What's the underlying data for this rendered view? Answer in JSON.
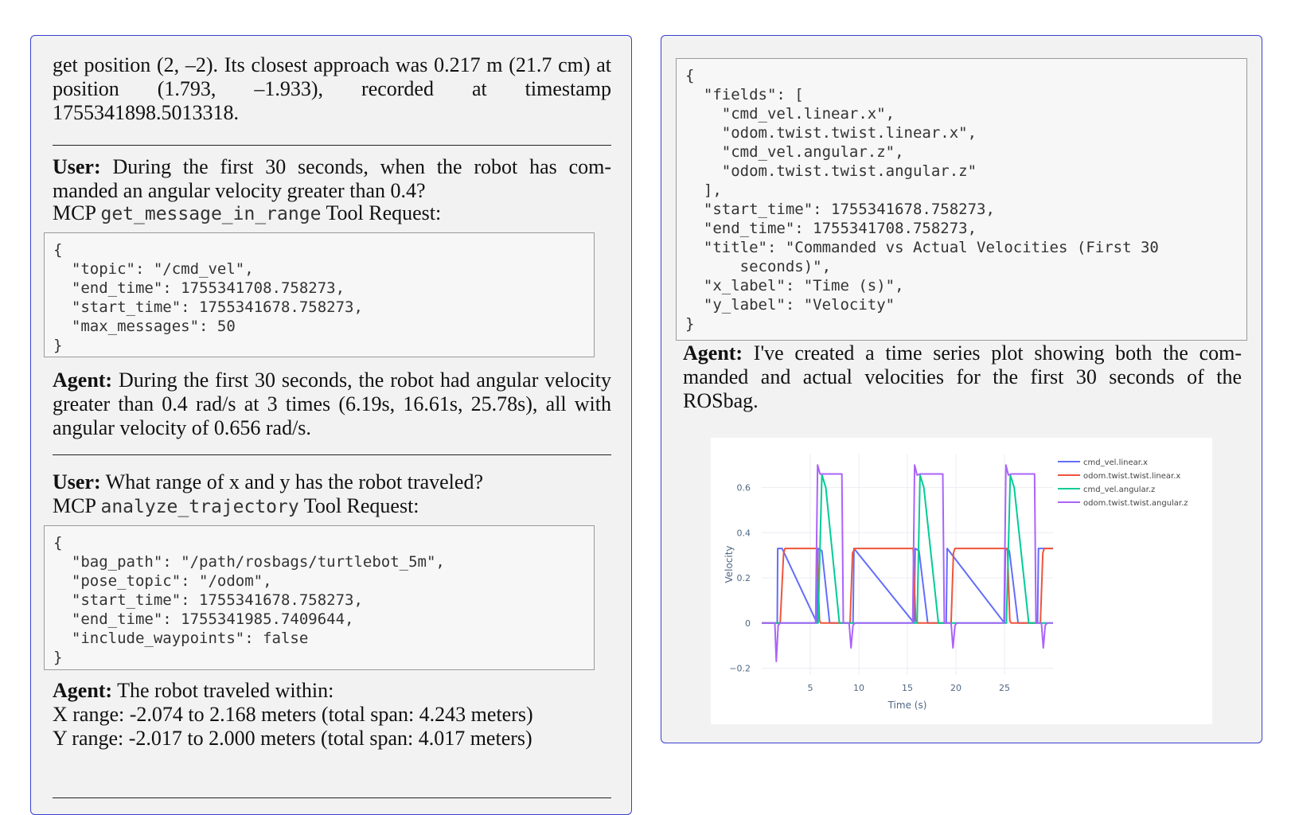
{
  "left": {
    "intro": "get position (2, –2). Its closest approach was 0.217 m (21.7 cm) at position (1.793, –1.933), recorded at timestamp 1755341898.5013318.",
    "q1": {
      "user_label": "User:",
      "user_text": " During the first 30 seconds, when the robot has com- manded an angular velocity greater than 0.4?",
      "mcp_prefix": "MCP ",
      "tool_name": "get_message_in_range",
      "mcp_suffix": " Tool Request:",
      "code": "{\n  \"topic\": \"/cmd_vel\",\n  \"end_time\": 1755341708.758273,\n  \"start_time\": 1755341678.758273,\n  \"max_messages\": 50\n}",
      "agent_label": "Agent:",
      "agent_text": " During the first 30 seconds, the robot had angular velocity greater than 0.4 rad/s at 3 times (6.19s, 16.61s, 25.78s), all with angular velocity of 0.656 rad/s."
    },
    "q2": {
      "user_label": "User:",
      "user_text": " What range of x and y has the robot traveled?",
      "mcp_prefix": "MCP ",
      "tool_name": "analyze_trajectory",
      "mcp_suffix": " Tool Request:",
      "code": "{\n  \"bag_path\": \"/path/rosbags/turtlebot_5m\",\n  \"pose_topic\": \"/odom\",\n  \"start_time\": 1755341678.758273,\n  \"end_time\": 1755341985.7409644,\n  \"include_waypoints\": false\n}",
      "agent_label": "Agent:",
      "agent_line1": " The robot traveled within:",
      "agent_line2": "X range: -2.074 to 2.168 meters (total span: 4.243 meters)",
      "agent_line3": "Y range: -2.017 to 2.000 meters (total span: 4.017 meters)"
    }
  },
  "right": {
    "code": "{\n  \"fields\": [\n    \"cmd_vel.linear.x\",\n    \"odom.twist.twist.linear.x\",\n    \"cmd_vel.angular.z\",\n    \"odom.twist.twist.angular.z\"\n  ],\n  \"start_time\": 1755341678.758273,\n  \"end_time\": 1755341708.758273,\n  \"title\": \"Commanded vs Actual Velocities (First 30\n      seconds)\",\n  \"x_label\": \"Time (s)\",\n  \"y_label\": \"Velocity\"\n}",
    "agent_label": "Agent:",
    "agent_text": " I've created a time series plot showing both the com- manded and actual velocities for the first 30 seconds of the ROSbag."
  },
  "chart_data": {
    "type": "line",
    "title": "",
    "xlabel": "Time (s)",
    "ylabel": "Velocity",
    "xlim": [
      0,
      30
    ],
    "ylim": [
      -0.23,
      0.75
    ],
    "xticks": [
      5,
      10,
      15,
      20,
      25
    ],
    "yticks": [
      -0.2,
      0,
      0.2,
      0.4,
      0.6
    ],
    "ytick_labels": [
      "−0.2",
      "0",
      "0.2",
      "0.4",
      "0.6"
    ],
    "grid": true,
    "legend_position": "top-right",
    "series": [
      {
        "name": "cmd_vel.linear.x",
        "color": "#636efa",
        "x": [
          0,
          1.6,
          1.65,
          2.1,
          5.7,
          5.8,
          6.2,
          7.0,
          9.4,
          9.5,
          15.7,
          15.8,
          16.2,
          17.1,
          19.0,
          19.1,
          25.0,
          25.1,
          25.5,
          26.4,
          28.4,
          28.5,
          30
        ],
        "y": [
          0,
          0,
          0.33,
          0.33,
          0,
          0.33,
          0.32,
          0,
          0,
          0.33,
          0,
          0.33,
          0.32,
          0,
          0,
          0.33,
          0,
          0.33,
          0.32,
          0,
          0,
          0.33,
          0.33
        ]
      },
      {
        "name": "odom.twist.twist.linear.x",
        "color": "#ef553b",
        "x": [
          0,
          1.9,
          2.25,
          2.4,
          5.7,
          5.95,
          6.1,
          9.1,
          9.35,
          9.6,
          15.6,
          15.85,
          16.1,
          19.5,
          19.75,
          19.9,
          25.3,
          25.55,
          25.7,
          28.7,
          28.95,
          29.1,
          30
        ],
        "y": [
          0,
          0,
          0.31,
          0.33,
          0.33,
          0.01,
          0,
          0,
          0.31,
          0.33,
          0.33,
          0.01,
          0,
          0,
          0.31,
          0.33,
          0.33,
          0.01,
          0,
          0,
          0.31,
          0.33,
          0.33
        ]
      },
      {
        "name": "cmd_vel.angular.z",
        "color": "#00cc96",
        "x": [
          0,
          5.8,
          6.2,
          6.6,
          8.0,
          16.0,
          16.3,
          16.7,
          18.2,
          25.2,
          25.6,
          26.0,
          27.5,
          30
        ],
        "y": [
          0,
          0,
          0.656,
          0.6,
          0,
          0,
          0.656,
          0.6,
          0,
          0,
          0.656,
          0.6,
          0,
          0
        ]
      },
      {
        "name": "odom.twist.twist.angular.z",
        "color": "#ab63fa",
        "x": [
          0,
          1.35,
          1.5,
          1.7,
          1.9,
          5.55,
          5.75,
          6.0,
          6.2,
          8.25,
          8.4,
          9.0,
          9.2,
          9.4,
          9.6,
          15.55,
          15.75,
          16.0,
          16.3,
          18.65,
          18.8,
          19.5,
          19.7,
          19.9,
          20.1,
          24.95,
          25.15,
          25.4,
          25.7,
          28.1,
          28.25,
          28.8,
          29.0,
          29.2,
          29.4,
          30
        ],
        "y": [
          0,
          0,
          -0.17,
          -0.01,
          0,
          0,
          0.7,
          0.66,
          0.66,
          0.66,
          0,
          0,
          -0.11,
          -0.01,
          0,
          0,
          0.7,
          0.655,
          0.66,
          0.66,
          0,
          0,
          -0.11,
          -0.01,
          0,
          0,
          0.7,
          0.655,
          0.66,
          0.66,
          0,
          0,
          -0.11,
          -0.01,
          0,
          0
        ]
      }
    ]
  }
}
